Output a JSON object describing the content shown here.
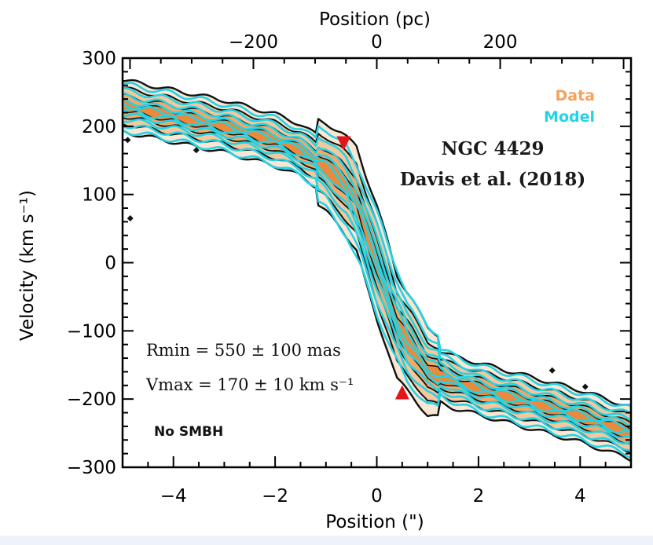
{
  "chart_data": {
    "type": "contour",
    "title": "",
    "xlabel": "Position (\")",
    "ylabel": "Velocity (km s⁻¹)",
    "x2label": "Position (pc)",
    "xlim": [
      -5,
      5
    ],
    "ylim": [
      -300,
      300
    ],
    "x2lim": [
      -412,
      412
    ],
    "x_ticks": [
      -4,
      -2,
      0,
      2,
      4
    ],
    "x_tick_labels": [
      "−4",
      "−2",
      "0",
      "2",
      "4"
    ],
    "y_ticks": [
      300,
      200,
      100,
      0,
      -100,
      -200,
      -300
    ],
    "y_tick_labels": [
      "300",
      "200",
      "100",
      "0",
      "−100",
      "−200",
      "−300"
    ],
    "x2_ticks": [
      -200,
      0,
      200
    ],
    "x2_tick_labels": [
      "−200",
      "0",
      "200"
    ],
    "legend": [
      {
        "label": "Data",
        "color": "#f5a25a"
      },
      {
        "label": "Model",
        "color": "#22d3e6"
      }
    ],
    "annotations": {
      "galaxy": "NGC 4429",
      "reference": "Davis et al. (2018)",
      "rmin": "Rmin = 550 ± 100 mas",
      "vmax": "Vmax = 170 ± 10 km s⁻¹",
      "note": "No SMBH"
    },
    "markers": [
      {
        "shape": "triangle-down",
        "x": -0.65,
        "y": 175,
        "color": "#e3151a"
      },
      {
        "shape": "triangle-up",
        "x": 0.5,
        "y": -190,
        "color": "#e3151a"
      }
    ],
    "data_curve": {
      "x": [
        -5.0,
        -4.0,
        -3.0,
        -2.0,
        -1.5,
        -1.0,
        -0.7,
        -0.4,
        -0.2,
        0.0,
        0.2,
        0.4,
        0.7,
        1.0,
        1.5,
        2.0,
        3.0,
        4.0,
        5.0
      ],
      "v": [
        230,
        215,
        200,
        180,
        165,
        140,
        120,
        95,
        45,
        0,
        -45,
        -95,
        -125,
        -160,
        -175,
        -185,
        -205,
        -225,
        -250
      ]
    },
    "model_curve": {
      "x": [
        -5.0,
        -4.0,
        -3.0,
        -2.0,
        -1.5,
        -1.0,
        -0.6,
        -0.3,
        0.0,
        0.3,
        0.6,
        1.0,
        1.5,
        2.0,
        3.0,
        4.0,
        5.0
      ],
      "v": [
        228,
        214,
        198,
        178,
        162,
        138,
        105,
        60,
        0,
        -60,
        -110,
        -150,
        -170,
        -185,
        -205,
        -225,
        -248
      ]
    },
    "outlier_points": [
      {
        "x": -4.9,
        "v": 180
      },
      {
        "x": -4.85,
        "v": 65
      },
      {
        "x": -3.55,
        "v": 165
      },
      {
        "x": 3.45,
        "v": -158
      },
      {
        "x": 4.1,
        "v": -182
      }
    ]
  }
}
